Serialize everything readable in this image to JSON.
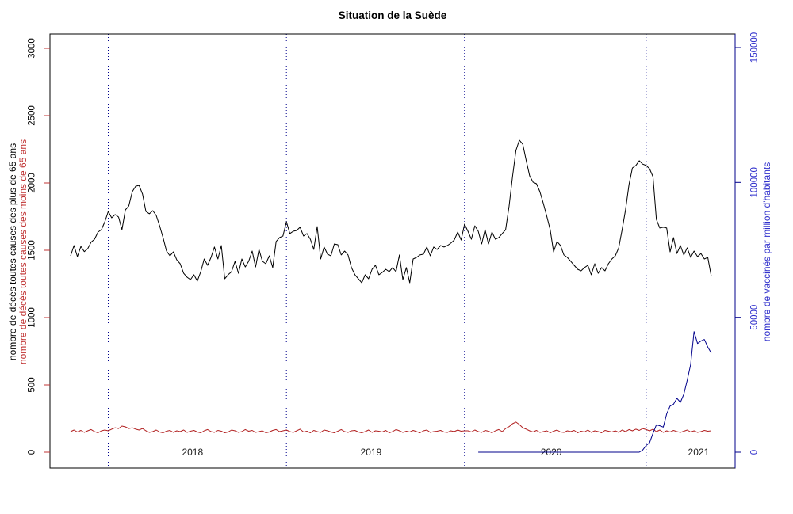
{
  "page": {
    "title": "Situation de la Suède"
  },
  "axis_titles": {
    "left_black": "nombre de décès toutes causes des plus de 65 ans",
    "left_red": "nombre de décès toutes causes des moins de 65 ans",
    "right_blue": "nombre de vaccinés par million d'habitants"
  },
  "colors": {
    "series_black": "#000000",
    "series_red": "#b22222",
    "series_blue": "#00008b",
    "gridline_blue": "#00008b",
    "left_tick": "#c03333",
    "left_tick_label": "#000000",
    "right_axis": "#00008b",
    "right_tick_label": "#3030cc",
    "year_label": "#1a1a1a",
    "box": "#000000"
  },
  "chart_data": {
    "type": "line",
    "title": "Situation de la Suède",
    "x_axis": {
      "unit": "week",
      "year_boundaries_week": [
        11,
        63,
        115,
        168
      ],
      "year_labels": [
        {
          "label": "2018",
          "week": 35.6
        },
        {
          "label": "2019",
          "week": 87.7
        },
        {
          "label": "2020",
          "week": 140.3
        },
        {
          "label": "2021",
          "week": 183.3
        }
      ]
    },
    "y_left": {
      "ticks": [
        0,
        500,
        1000,
        1500,
        2000,
        2500,
        3000
      ],
      "range": [
        0,
        3000
      ]
    },
    "y_right": {
      "ticks": [
        0,
        50000,
        100000,
        150000
      ],
      "range": [
        0,
        150000
      ]
    },
    "series": [
      {
        "key": "deces-plus-65",
        "name": "nombre de décès toutes causes des plus de 65 ans",
        "axis": "left",
        "color": "#000000",
        "start_week": 0,
        "values": [
          1459,
          1535,
          1453,
          1529,
          1490,
          1512,
          1560,
          1582,
          1635,
          1653,
          1712,
          1788,
          1741,
          1765,
          1747,
          1653,
          1800,
          1829,
          1935,
          1976,
          1982,
          1918,
          1788,
          1771,
          1794,
          1759,
          1682,
          1594,
          1494,
          1459,
          1488,
          1429,
          1400,
          1329,
          1300,
          1282,
          1318,
          1271,
          1341,
          1435,
          1388,
          1447,
          1524,
          1435,
          1535,
          1288,
          1318,
          1341,
          1418,
          1329,
          1435,
          1376,
          1418,
          1494,
          1376,
          1506,
          1418,
          1400,
          1459,
          1371,
          1565,
          1594,
          1606,
          1712,
          1624,
          1641,
          1647,
          1671,
          1606,
          1624,
          1582,
          1506,
          1676,
          1435,
          1524,
          1471,
          1459,
          1547,
          1541,
          1465,
          1494,
          1465,
          1371,
          1318,
          1288,
          1259,
          1318,
          1288,
          1359,
          1388,
          1318,
          1335,
          1359,
          1341,
          1371,
          1341,
          1465,
          1282,
          1371,
          1259,
          1435,
          1447,
          1465,
          1471,
          1524,
          1459,
          1524,
          1506,
          1535,
          1524,
          1535,
          1553,
          1576,
          1635,
          1576,
          1694,
          1641,
          1582,
          1682,
          1641,
          1547,
          1653,
          1547,
          1635,
          1582,
          1594,
          1624,
          1653,
          1829,
          2047,
          2241,
          2318,
          2288,
          2165,
          2053,
          2006,
          1994,
          1935,
          1847,
          1753,
          1653,
          1488,
          1565,
          1535,
          1465,
          1447,
          1418,
          1388,
          1359,
          1347,
          1371,
          1388,
          1318,
          1400,
          1329,
          1371,
          1347,
          1400,
          1435,
          1459,
          1518,
          1653,
          1800,
          1988,
          2112,
          2130,
          2165,
          2140,
          2130,
          2106,
          2047,
          1729,
          1665,
          1671,
          1665,
          1488,
          1594,
          1476,
          1535,
          1465,
          1518,
          1447,
          1494,
          1453,
          1476,
          1435,
          1447,
          1312
        ]
      },
      {
        "key": "deces-moins-65",
        "name": "nombre de décès toutes causes des moins de 65 ans",
        "axis": "left",
        "color": "#b22222",
        "start_week": 0,
        "values": [
          153,
          165,
          150,
          162,
          147,
          159,
          168,
          153,
          144,
          159,
          165,
          159,
          171,
          182,
          176,
          194,
          188,
          176,
          182,
          171,
          165,
          176,
          159,
          147,
          153,
          165,
          150,
          144,
          156,
          162,
          147,
          159,
          153,
          165,
          147,
          156,
          162,
          150,
          144,
          159,
          168,
          153,
          147,
          162,
          156,
          144,
          150,
          165,
          159,
          147,
          153,
          168,
          156,
          162,
          147,
          153,
          159,
          144,
          150,
          162,
          168,
          153,
          159,
          165,
          153,
          147,
          159,
          171,
          150,
          156,
          144,
          162,
          153,
          147,
          165,
          159,
          150,
          144,
          156,
          168,
          153,
          147,
          159,
          162,
          150,
          144,
          153,
          165,
          147,
          159,
          156,
          150,
          162,
          144,
          153,
          168,
          159,
          147,
          156,
          150,
          162,
          153,
          144,
          159,
          165,
          147,
          153,
          156,
          162,
          150,
          147,
          159,
          153,
          165,
          156,
          159,
          159,
          150,
          165,
          153,
          147,
          162,
          156,
          144,
          159,
          168,
          153,
          176,
          190,
          212,
          224,
          206,
          182,
          171,
          159,
          150,
          162,
          147,
          153,
          159,
          144,
          156,
          165,
          150,
          147,
          159,
          153,
          162,
          144,
          156,
          150,
          165,
          147,
          159,
          153,
          144,
          162,
          156,
          150,
          159,
          147,
          165,
          153,
          168,
          159,
          171,
          162,
          176,
          168,
          159,
          171,
          153,
          165,
          147,
          159,
          150,
          162,
          153,
          147,
          156,
          165,
          150,
          159,
          147,
          153,
          162,
          156,
          159
        ]
      },
      {
        "key": "vaccines-million",
        "name": "nombre de vaccinés par million d'habitants",
        "axis": "right",
        "color": "#00008b",
        "start_week": 119,
        "values": [
          0,
          0,
          0,
          0,
          0,
          0,
          0,
          0,
          0,
          0,
          0,
          0,
          0,
          0,
          0,
          0,
          0,
          0,
          0,
          0,
          0,
          0,
          0,
          0,
          0,
          0,
          0,
          0,
          0,
          0,
          0,
          0,
          0,
          0,
          0,
          0,
          0,
          0,
          0,
          0,
          0,
          0,
          0,
          0,
          0,
          0,
          0,
          0,
          800,
          2500,
          3500,
          7000,
          10150,
          9800,
          9300,
          14200,
          17100,
          17800,
          20000,
          18500,
          21500,
          26700,
          32500,
          44700,
          40300,
          41200,
          41800,
          39000,
          36800
        ]
      }
    ]
  }
}
